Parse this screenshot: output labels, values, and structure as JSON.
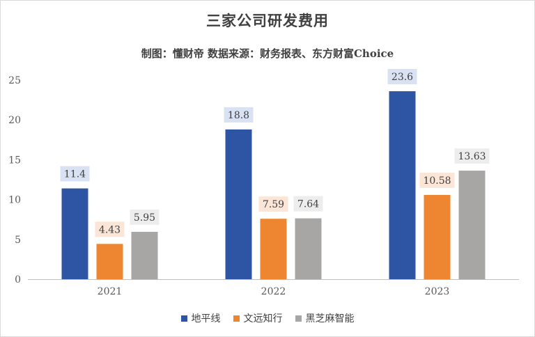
{
  "title": "三家公司研发费用",
  "subtitle": "制图：懂财帝   数据来源：财务报表、东方财富Choice",
  "chart_data": {
    "type": "bar",
    "categories": [
      "2021",
      "2022",
      "2023"
    ],
    "series": [
      {
        "name": "地平线",
        "values": [
          11.4,
          18.8,
          23.6
        ],
        "color": "#2e54a4",
        "label_bg": "#d9e2f3"
      },
      {
        "name": "文远知行",
        "values": [
          4.43,
          7.59,
          10.58
        ],
        "color": "#ed8531",
        "label_bg": "#fbe5d6"
      },
      {
        "name": "黑芝麻智能",
        "values": [
          5.95,
          7.64,
          13.63
        ],
        "color": "#a8a5a5",
        "label_bg": "#ededed"
      }
    ],
    "data_labels": [
      [
        "11.4",
        "18.8",
        "23.6"
      ],
      [
        "4.43",
        "7.59",
        "10.58"
      ],
      [
        "5.95",
        "7.64",
        "13.63"
      ]
    ],
    "yticks": [
      "0",
      "5",
      "10",
      "15",
      "20",
      "25"
    ],
    "ylim": [
      0,
      25
    ],
    "legend_position": "bottom",
    "grid": false
  }
}
